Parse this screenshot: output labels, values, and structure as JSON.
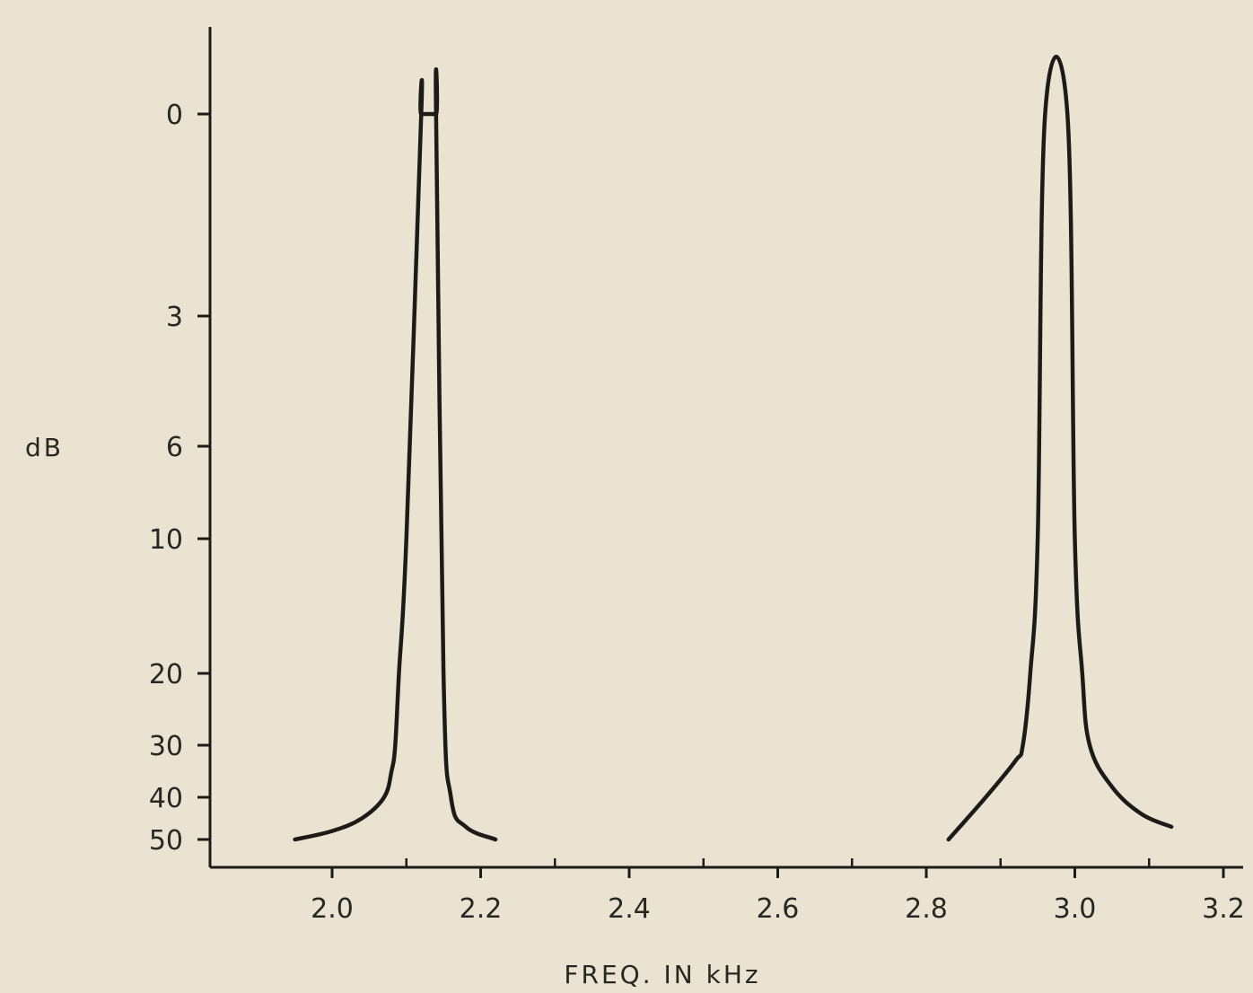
{
  "chart_data": {
    "type": "line",
    "title": "",
    "xlabel": "FREQ. IN kHz",
    "ylabel": "dB",
    "xlim": [
      1.75,
      3.2
    ],
    "x_ticks": [
      2.0,
      2.2,
      2.4,
      2.6,
      2.8,
      3.0,
      3.2
    ],
    "x_tick_labels": [
      "2.0",
      "2.2",
      "2.4",
      "2.6",
      "2.8",
      "3.0",
      "3.2"
    ],
    "x_minor_ticks": [
      2.1,
      2.3,
      2.5,
      2.7,
      2.9,
      3.1
    ],
    "y_ticks": [
      0,
      3,
      6,
      10,
      20,
      30,
      40,
      50
    ],
    "y_tick_labels": [
      "0",
      "3",
      "6",
      "10",
      "20",
      "30",
      "40",
      "50"
    ],
    "y_inverted": true,
    "y_scale": "nonlinear (as printed)",
    "grid": false,
    "legend": "none",
    "line_color": "#1e1a17",
    "series": [
      {
        "x": [
          1.95,
          2.0,
          2.04,
          2.07,
          2.08,
          2.085,
          2.09,
          2.1,
          2.12,
          2.12,
          2.14,
          2.14,
          2.15,
          2.16,
          2.18,
          2.22
        ],
        "y": [
          50,
          48,
          45,
          40,
          35,
          30,
          20,
          10,
          0,
          0,
          0,
          0,
          20,
          40,
          47,
          50
        ]
      },
      {
        "x": [
          2.83,
          2.88,
          2.92,
          2.93,
          2.94,
          2.95,
          2.96,
          2.99,
          3.0,
          3.01,
          3.02,
          3.05,
          3.09,
          3.13
        ],
        "y": [
          50,
          40,
          33,
          30,
          20,
          10,
          0,
          0,
          10,
          20,
          30,
          38,
          44,
          47
        ]
      }
    ]
  }
}
